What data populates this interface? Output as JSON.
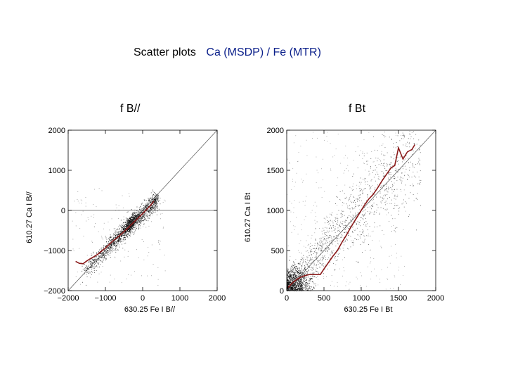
{
  "page": {
    "title_prefix": "Scatter plots",
    "title_highlight": "Ca (MSDP) / Fe (MTR)",
    "highlight_color": "#0a1f8a"
  },
  "chart_data": [
    {
      "type": "scatter",
      "title": "f B//",
      "xlabel": "630.25 Fe I B//",
      "ylabel": "610.27 Ca I B//",
      "xlim": [
        -2000,
        2000
      ],
      "ylim": [
        -2000,
        2000
      ],
      "xticks": [
        -2000,
        -1000,
        0,
        1000,
        2000
      ],
      "yticks": [
        -2000,
        -1000,
        0,
        1000,
        2000
      ],
      "xtick_labels": [
        "−2000",
        "−1000",
        "0",
        "1000",
        "2000"
      ],
      "ytick_labels": [
        "−2000",
        "−1000",
        "0",
        "1000",
        "2000"
      ],
      "grid": false,
      "reference_lines": [
        "y = x",
        "y = 0"
      ],
      "point_color": "#000000",
      "mean_curve_color": "#8b1a1a",
      "mean_curve": {
        "x": [
          -1800,
          -1700,
          -1600,
          -1500,
          -1400,
          -1300,
          -1200,
          -1100,
          -1000,
          -900,
          -800,
          -700,
          -600,
          -500,
          -400,
          -300,
          -200,
          -100,
          0,
          100,
          200,
          300
        ],
        "y": [
          -1270,
          -1320,
          -1330,
          -1260,
          -1200,
          -1150,
          -1090,
          -1010,
          -940,
          -850,
          -760,
          -690,
          -610,
          -530,
          -440,
          -350,
          -260,
          -170,
          -80,
          20,
          110,
          230
        ]
      }
    },
    {
      "type": "scatter",
      "title": "f Bt",
      "xlabel": "630.25 Fe I Bt",
      "ylabel": "610.27 Ca I Bt",
      "xlim": [
        0,
        2000
      ],
      "ylim": [
        0,
        2000
      ],
      "xticks": [
        0,
        500,
        1000,
        1500,
        2000
      ],
      "yticks": [
        0,
        500,
        1000,
        1500,
        2000
      ],
      "xtick_labels": [
        "0",
        "500",
        "1000",
        "1500",
        "2000"
      ],
      "ytick_labels": [
        "0",
        "500",
        "1000",
        "1500",
        "2000"
      ],
      "grid": false,
      "reference_lines": [
        "y = x"
      ],
      "point_color": "#000000",
      "mean_curve_color": "#8b1a1a",
      "mean_curve": {
        "x": [
          20,
          80,
          150,
          220,
          300,
          380,
          450,
          500,
          560,
          620,
          680,
          740,
          800,
          860,
          920,
          980,
          1040,
          1100,
          1160,
          1220,
          1280,
          1340,
          1400,
          1450,
          1500,
          1560,
          1620,
          1680,
          1720
        ],
        "y": [
          40,
          100,
          150,
          180,
          200,
          200,
          200,
          270,
          350,
          430,
          500,
          600,
          690,
          790,
          880,
          970,
          1060,
          1140,
          1200,
          1280,
          1370,
          1450,
          1530,
          1560,
          1780,
          1640,
          1730,
          1760,
          1820
        ]
      }
    }
  ]
}
